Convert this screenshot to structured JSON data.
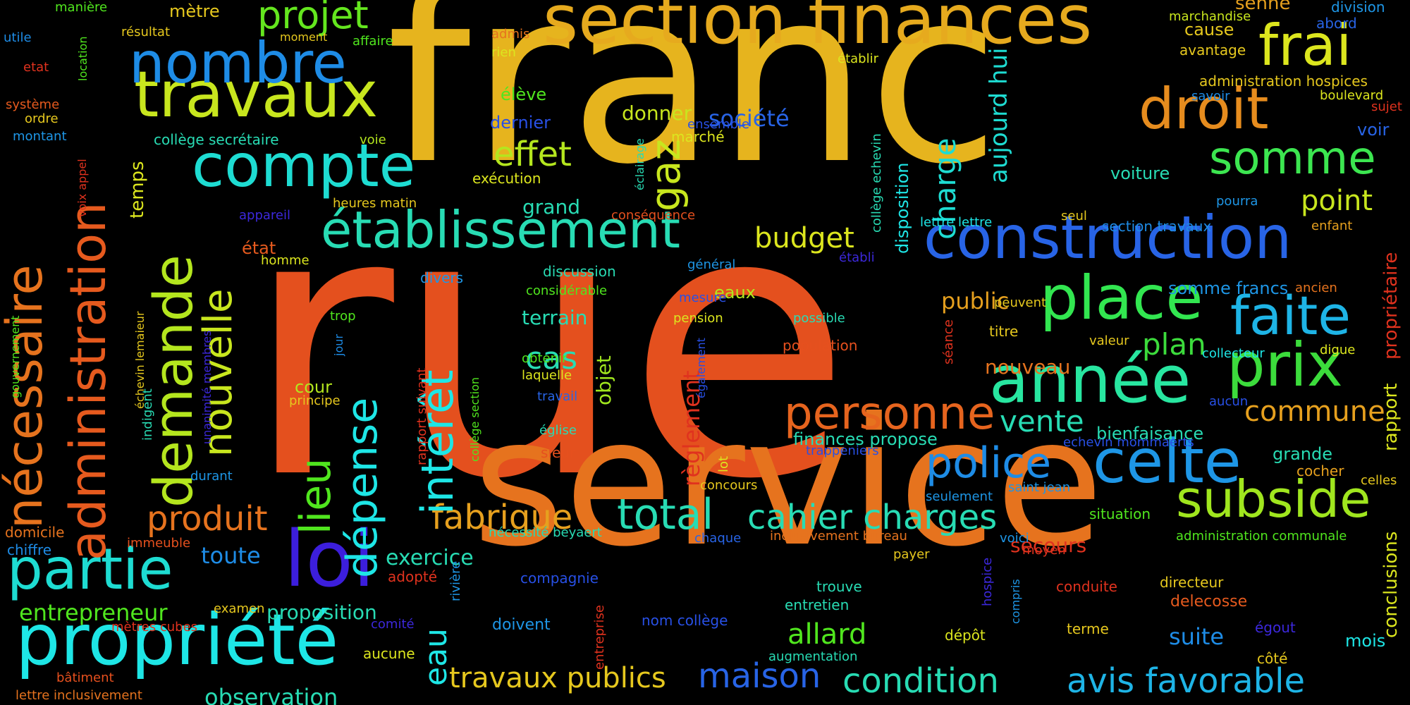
{
  "background": "#000000",
  "palette": {
    "red": "#e0321e",
    "orange": "#e65a1e",
    "amber": "#e6a01e",
    "yellow": "#e6c81e",
    "lime": "#b4e61e",
    "green": "#32dc3c",
    "teal": "#28dca0",
    "cyan": "#1ed2dc",
    "sky": "#1e96e6",
    "blue": "#2850e6",
    "indigo": "#3c28dc"
  },
  "words": [
    {
      "text": "rue",
      "color": "#e4501e"
    },
    {
      "text": "franc",
      "color": "#e6b41e"
    },
    {
      "text": "service",
      "color": "#e6731e"
    },
    {
      "text": "section finances",
      "color": "#e6aa1e"
    },
    {
      "text": "construction",
      "color": "#2864e6"
    },
    {
      "text": "établissement",
      "color": "#28dcb4"
    },
    {
      "text": "travaux",
      "color": "#c8e61e"
    },
    {
      "text": "nombre",
      "color": "#1e8ce6"
    },
    {
      "text": "compte",
      "color": "#1edcd2"
    },
    {
      "text": "droit",
      "color": "#e68c1e"
    },
    {
      "text": "frai",
      "color": "#dce61e"
    },
    {
      "text": "somme",
      "color": "#3ce650"
    },
    {
      "text": "année",
      "color": "#28e6a0"
    },
    {
      "text": "prix",
      "color": "#3cdc3c"
    },
    {
      "text": "place",
      "color": "#32e650"
    },
    {
      "text": "faite",
      "color": "#1eb4e6"
    },
    {
      "text": "celte",
      "color": "#1e96e6"
    },
    {
      "text": "personne",
      "color": "#e6641e"
    },
    {
      "text": "subside",
      "color": "#a0e61e"
    },
    {
      "text": "police",
      "color": "#1e8ce6"
    },
    {
      "text": "partie",
      "color": "#1edcd2"
    },
    {
      "text": "propriété",
      "color": "#1ee6e6"
    },
    {
      "text": "loi",
      "color": "#3c1edc"
    },
    {
      "text": "total",
      "color": "#28dcb4"
    },
    {
      "text": "cahier charges",
      "color": "#28dcb4"
    },
    {
      "text": "avis favorable",
      "color": "#1eb4e6"
    },
    {
      "text": "condition",
      "color": "#28dcb4"
    },
    {
      "text": "maison",
      "color": "#2864e6"
    },
    {
      "text": "travaux publics",
      "color": "#e6c81e"
    },
    {
      "text": "allard",
      "color": "#50e61e"
    },
    {
      "text": "fabrique",
      "color": "#e6a01e"
    },
    {
      "text": "produit",
      "color": "#e6731e"
    },
    {
      "text": "budget",
      "color": "#dce61e"
    },
    {
      "text": "effet",
      "color": "#b4e61e"
    },
    {
      "text": "projet",
      "color": "#64e61e"
    },
    {
      "text": "charge",
      "color": "#1edcd2"
    },
    {
      "text": "vente",
      "color": "#28dcb4"
    },
    {
      "text": "plan",
      "color": "#3cdc3c"
    },
    {
      "text": "commune",
      "color": "#e6a01e"
    },
    {
      "text": "point",
      "color": "#c8e61e"
    },
    {
      "text": "nécessaire",
      "color": "#e6731e"
    },
    {
      "text": "administration",
      "color": "#e65a1e"
    },
    {
      "text": "demande",
      "color": "#b4e61e"
    },
    {
      "text": "nouvelle",
      "color": "#c8e61e"
    },
    {
      "text": "lieu",
      "color": "#50e61e"
    },
    {
      "text": "dépense",
      "color": "#1ee6e6"
    },
    {
      "text": "intérêt",
      "color": "#1ee6e6"
    },
    {
      "text": "gaz",
      "color": "#c8e61e"
    },
    {
      "text": "aujourd hui",
      "color": "#1edcd2"
    },
    {
      "text": "eau",
      "color": "#1ee6e6"
    },
    {
      "text": "règlement",
      "color": "#e0321e"
    },
    {
      "text": "entrepreneur",
      "color": "#50e61e"
    },
    {
      "text": "observation",
      "color": "#28dcb4"
    },
    {
      "text": "proposition",
      "color": "#28dcb4"
    },
    {
      "text": "toute",
      "color": "#1e8ce6"
    },
    {
      "text": "exercice",
      "color": "#28dcb4"
    },
    {
      "text": "terrain",
      "color": "#28dcb4"
    },
    {
      "text": "cas",
      "color": "#28dcb4"
    },
    {
      "text": "objet",
      "color": "#a0e61e"
    },
    {
      "text": "public",
      "color": "#e6a01e"
    },
    {
      "text": "nouveau",
      "color": "#e6731e"
    },
    {
      "text": "société",
      "color": "#2864e6"
    },
    {
      "text": "donner",
      "color": "#c8e61e"
    },
    {
      "text": "grand",
      "color": "#28dcb4"
    },
    {
      "text": "temps",
      "color": "#dce61e"
    },
    {
      "text": "cour",
      "color": "#b4e61e"
    },
    {
      "text": "suite",
      "color": "#1e8ce6"
    },
    {
      "text": "secours",
      "color": "#e0321e"
    },
    {
      "text": "voiture",
      "color": "#28dcb4"
    },
    {
      "text": "grande",
      "color": "#28dcb4"
    },
    {
      "text": "finances propose",
      "color": "#28dcb4"
    },
    {
      "text": "bienfaisance",
      "color": "#28dcb4"
    },
    {
      "text": "somme francs",
      "color": "#1e96e6"
    },
    {
      "text": "mois",
      "color": "#1ee6e6"
    },
    {
      "text": "eaux",
      "color": "#b4e61e"
    },
    {
      "text": "disposition",
      "color": "#1ee6e6"
    },
    {
      "text": "état",
      "color": "#e65a1e"
    },
    {
      "text": "mètre",
      "color": "#e6c81e"
    },
    {
      "text": "marché",
      "color": "#dce61e"
    },
    {
      "text": "exécution",
      "color": "#dce61e"
    },
    {
      "text": "élève",
      "color": "#50e61e"
    },
    {
      "text": "dernier",
      "color": "#2850e6"
    },
    {
      "text": "collège secrétaire",
      "color": "#28dcb4"
    },
    {
      "text": "collège echevin",
      "color": "#28dcb4"
    },
    {
      "text": "considérable",
      "color": "#50e61e"
    },
    {
      "text": "discussion",
      "color": "#28dcb4"
    },
    {
      "text": "conséquence",
      "color": "#e6501e"
    },
    {
      "text": "heures matin",
      "color": "#e6c81e"
    },
    {
      "text": "appareil",
      "color": "#3c28dc"
    },
    {
      "text": "homme",
      "color": "#dce61e"
    },
    {
      "text": "divers",
      "color": "#1e96e6"
    },
    {
      "text": "trop",
      "color": "#50e61e"
    },
    {
      "text": "pension",
      "color": "#dce61e"
    },
    {
      "text": "mesure",
      "color": "#2850e6"
    },
    {
      "text": "général",
      "color": "#1e96e6"
    },
    {
      "text": "établi",
      "color": "#3c28dc"
    },
    {
      "text": "possible",
      "color": "#28dcb4"
    },
    {
      "text": "population",
      "color": "#e6501e"
    },
    {
      "text": "peuvent",
      "color": "#e6c81e"
    },
    {
      "text": "titre",
      "color": "#e6c81e"
    },
    {
      "text": "valeur",
      "color": "#e6c81e"
    },
    {
      "text": "collecteur",
      "color": "#1ee6e6"
    },
    {
      "text": "digue",
      "color": "#dce61e"
    },
    {
      "text": "cause",
      "color": "#e6c81e"
    },
    {
      "text": "avantage",
      "color": "#e6c81e"
    },
    {
      "text": "marchandise",
      "color": "#c8e61e"
    },
    {
      "text": "senne",
      "color": "#e6a01e"
    },
    {
      "text": "division",
      "color": "#1e96e6"
    },
    {
      "text": "abord",
      "color": "#2864e6"
    },
    {
      "text": "administration hospices",
      "color": "#e6c81e"
    },
    {
      "text": "boulevard",
      "color": "#dce61e"
    },
    {
      "text": "savoir",
      "color": "#1e8ce6"
    },
    {
      "text": "sujet",
      "color": "#e0321e"
    },
    {
      "text": "voir",
      "color": "#2864e6"
    },
    {
      "text": "pourra",
      "color": "#1e96e6"
    },
    {
      "text": "seul",
      "color": "#e6c81e"
    },
    {
      "text": "lettre lettre",
      "color": "#1ee6e6"
    },
    {
      "text": "section travaux",
      "color": "#1e8ce6"
    },
    {
      "text": "enfant",
      "color": "#e6a01e"
    },
    {
      "text": "ancien",
      "color": "#e6731e"
    },
    {
      "text": "propriétaire",
      "color": "#e0321e"
    },
    {
      "text": "rapport",
      "color": "#dce61e"
    },
    {
      "text": "conclusions",
      "color": "#dce61e"
    },
    {
      "text": "celles",
      "color": "#e6c81e"
    },
    {
      "text": "cocher",
      "color": "#e6a01e"
    },
    {
      "text": "aucun",
      "color": "#2850e6"
    },
    {
      "text": "echevin mommaerts",
      "color": "#2850e6"
    },
    {
      "text": "trappeniers",
      "color": "#2850e6"
    },
    {
      "text": "saint jean",
      "color": "#1e96e6"
    },
    {
      "text": "seulement",
      "color": "#1e96e6"
    },
    {
      "text": "situation",
      "color": "#50e61e"
    },
    {
      "text": "voici",
      "color": "#1e96e6"
    },
    {
      "text": "administration communale",
      "color": "#50e61e"
    },
    {
      "text": "moyen",
      "color": "#e0321e"
    },
    {
      "text": "directeur",
      "color": "#e6c81e"
    },
    {
      "text": "delecosse",
      "color": "#e65a1e"
    },
    {
      "text": "conduite",
      "color": "#e0321e"
    },
    {
      "text": "égout",
      "color": "#3c28dc"
    },
    {
      "text": "terme",
      "color": "#e6c81e"
    },
    {
      "text": "côté",
      "color": "#e6c81e"
    },
    {
      "text": "compris",
      "color": "#1e96e6"
    },
    {
      "text": "hospice",
      "color": "#3c28dc"
    },
    {
      "text": "dépôt",
      "color": "#dce61e"
    },
    {
      "text": "trouve",
      "color": "#28dcb4"
    },
    {
      "text": "entretien",
      "color": "#28dcb4"
    },
    {
      "text": "augmentation",
      "color": "#28dcb4"
    },
    {
      "text": "payer",
      "color": "#e6c81e"
    },
    {
      "text": "inclusivement bureau",
      "color": "#e6731e"
    },
    {
      "text": "chaque",
      "color": "#2864e6"
    },
    {
      "text": "concours",
      "color": "#e6c81e"
    },
    {
      "text": "lot",
      "color": "#dce61e"
    },
    {
      "text": "également",
      "color": "#2850e6"
    },
    {
      "text": "nom collège",
      "color": "#2850e6"
    },
    {
      "text": "compagnie",
      "color": "#2850e6"
    },
    {
      "text": "doivent",
      "color": "#1e96e6"
    },
    {
      "text": "entreprise",
      "color": "#e0321e"
    },
    {
      "text": "rivière",
      "color": "#1e96e6"
    },
    {
      "text": "nécessité beyaert",
      "color": "#28dcb4"
    },
    {
      "text": "adopté",
      "color": "#e0321e"
    },
    {
      "text": "comité",
      "color": "#3c28dc"
    },
    {
      "text": "examen",
      "color": "#e6c81e"
    },
    {
      "text": "aucune",
      "color": "#dce61e"
    },
    {
      "text": "mètres cubes",
      "color": "#e0321e"
    },
    {
      "text": "bâtiment",
      "color": "#e6501e"
    },
    {
      "text": "lettre inclusivement",
      "color": "#e6731e"
    },
    {
      "text": "immeuble",
      "color": "#e6501e"
    },
    {
      "text": "chiffre",
      "color": "#1e8ce6"
    },
    {
      "text": "domicile",
      "color": "#e6731e"
    },
    {
      "text": "durant",
      "color": "#1e96e6"
    },
    {
      "text": "principe",
      "color": "#e6c81e"
    },
    {
      "text": "indigent",
      "color": "#28dcb4"
    },
    {
      "text": "unanimité membres",
      "color": "#3c28dc"
    },
    {
      "text": "jour",
      "color": "#1e8ce6"
    },
    {
      "text": "rapport suivant",
      "color": "#e0321e"
    },
    {
      "text": "collège section",
      "color": "#50e61e"
    },
    {
      "text": "sieur",
      "color": "#e6501e"
    },
    {
      "text": "église",
      "color": "#28dcb4"
    },
    {
      "text": "travail",
      "color": "#2864e6"
    },
    {
      "text": "laquelle",
      "color": "#dce61e"
    },
    {
      "text": "obtenir",
      "color": "#50e61e"
    },
    {
      "text": "échevin lemaieur",
      "color": "#e6c81e"
    },
    {
      "text": "gouvernement",
      "color": "#50e61e"
    },
    {
      "text": "voix appel",
      "color": "#e0321e"
    },
    {
      "text": "système",
      "color": "#e65a1e"
    },
    {
      "text": "ordre",
      "color": "#e6c81e"
    },
    {
      "text": "montant",
      "color": "#1e96e6"
    },
    {
      "text": "etat",
      "color": "#e0321e"
    },
    {
      "text": "location",
      "color": "#50e61e"
    },
    {
      "text": "utile",
      "color": "#1e8ce6"
    },
    {
      "text": "manière",
      "color": "#50e61e"
    },
    {
      "text": "résultat",
      "color": "#e6c81e"
    },
    {
      "text": "moment",
      "color": "#e6c81e"
    },
    {
      "text": "affaire",
      "color": "#50e61e"
    },
    {
      "text": "admis",
      "color": "#e6731e"
    },
    {
      "text": "rien",
      "color": "#dce61e"
    },
    {
      "text": "établir",
      "color": "#dce61e"
    },
    {
      "text": "ensemble",
      "color": "#2850e6"
    },
    {
      "text": "éclairage",
      "color": "#28dcb4"
    },
    {
      "text": "voie",
      "color": "#b4e61e"
    },
    {
      "text": "séance",
      "color": "#e0321e"
    }
  ]
}
